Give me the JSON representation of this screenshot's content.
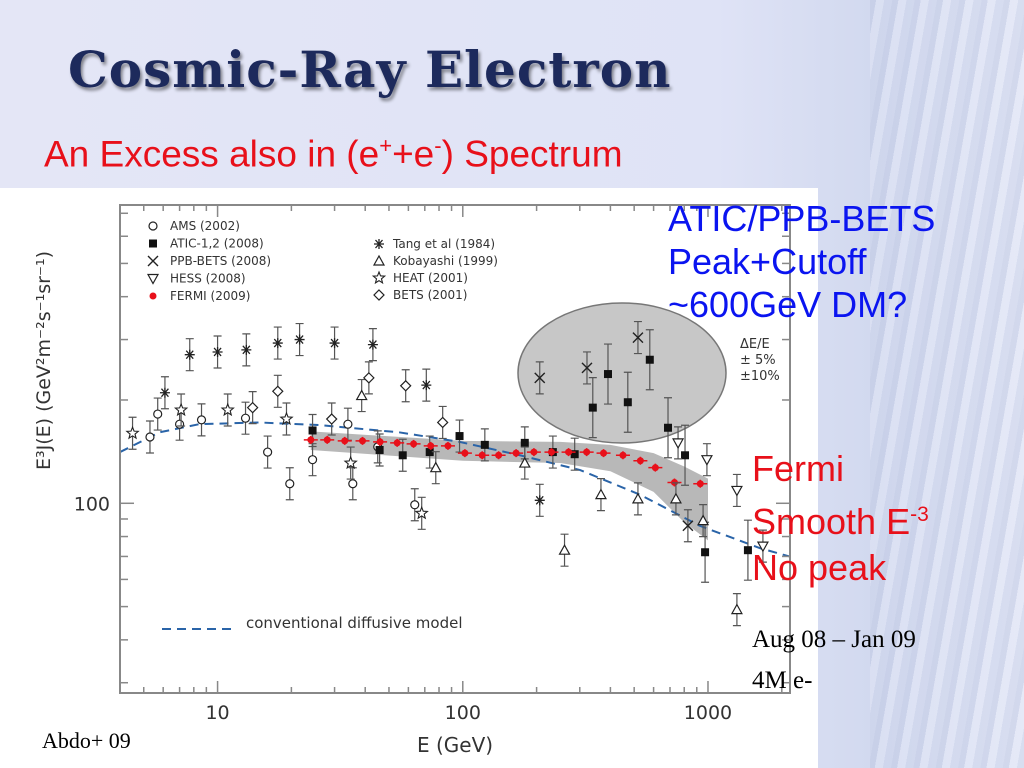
{
  "slide": {
    "title": "Cosmic-Ray Electron",
    "subtitle_main": "An Excess also in (e",
    "subtitle_sup1": "+",
    "subtitle_mid": "+e",
    "subtitle_sup2": "-",
    "subtitle_end": ") Spectrum",
    "annotation_blue": [
      "ATIC/PPB-BETS",
      "Peak+Cutoff",
      "~600GeV DM?"
    ],
    "annotation_red_1": "Fermi",
    "annotation_red_2": "Smooth E",
    "annotation_red_2_sup": "-3",
    "annotation_red_3": "No peak",
    "period": "Aug 08 – Jan 09",
    "events": "4M e-",
    "citation": "Abdo+ 09",
    "colors": {
      "title": "#1d2a5c",
      "subtitle": "#e8101a",
      "blue_note": "#0a14f0",
      "fermi": "#e8101a",
      "model": "#2a64a8"
    }
  },
  "chart_data": {
    "type": "scatter",
    "xlabel": "E (GeV)",
    "ylabel": "E³J(E) (GeV²m⁻²s⁻¹sr⁻¹)",
    "xscale": "log",
    "yscale": "log",
    "xlim": [
      4,
      2160
    ],
    "ylim": [
      28,
      740
    ],
    "xticks": [
      {
        "value": 10,
        "label": "10"
      },
      {
        "value": 100,
        "label": "100"
      },
      {
        "value": 1000,
        "label": "1000"
      }
    ],
    "yticks": [
      {
        "value": 100,
        "label": "100"
      }
    ],
    "energy_resolution_note": [
      "ΔE/E",
      "± 5%",
      "±10%"
    ],
    "model": {
      "name": "conventional diffusive model",
      "x": [
        4.0,
        5.8,
        8.4,
        14.8,
        26,
        55,
        97,
        171,
        301,
        527,
        925,
        1630,
        2150
      ],
      "y": [
        141,
        161,
        170,
        172,
        169,
        161,
        151,
        138,
        125,
        106,
        86,
        74,
        70
      ]
    },
    "fermi_band": {
      "x": [
        24,
        100,
        250,
        400,
        600,
        800,
        1000
      ],
      "lower": [
        143,
        133,
        131,
        124,
        108,
        88,
        78
      ],
      "upper": [
        162,
        152,
        151,
        148,
        140,
        128,
        118
      ]
    },
    "legend_left": [
      "AMS (2002)",
      "ATIC-1,2 (2008)",
      "PPB-BETS (2008)",
      "HESS (2008)",
      "FERMI (2009)"
    ],
    "legend_right": [
      "Tang et al (1984)",
      "Kobayashi (1999)",
      "HEAT (2001)",
      "BETS (2001)"
    ],
    "series": [
      {
        "name": "AMS (2002)",
        "marker": "circle",
        "x": [
          5.3,
          5.7,
          7.0,
          8.6,
          13.0,
          16,
          19.7,
          24.4,
          34,
          35.6,
          45,
          63.7
        ],
        "y": [
          156,
          182,
          170,
          175,
          177,
          141,
          114,
          134,
          170,
          114,
          146,
          99
        ]
      },
      {
        "name": "ATIC-1,2 (2008)",
        "marker": "square",
        "x": [
          24.4,
          45.8,
          56.9,
          73.3,
          97,
          123,
          179,
          233,
          286,
          339,
          391,
          471,
          579,
          687,
          806,
          973,
          1455
        ],
        "y": [
          163,
          143,
          138,
          141,
          157,
          148,
          150,
          141,
          139,
          190,
          238,
          197,
          262,
          166,
          138,
          72,
          73
        ]
      },
      {
        "name": "PPB-BETS (2008)",
        "marker": "x",
        "x": [
          206,
          321,
          518,
          828
        ],
        "y": [
          232,
          248,
          304,
          86
        ]
      },
      {
        "name": "HESS (2008)",
        "marker": "triangle-down",
        "x": [
          755,
          990,
          1312,
          1675
        ],
        "y": [
          150,
          134,
          109,
          75
        ]
      },
      {
        "name": "FERMI (2009)",
        "marker": "dot",
        "x": [
          24,
          28,
          33,
          39,
          46,
          54,
          63,
          74,
          87,
          102,
          120,
          140,
          165,
          195,
          230,
          270,
          320,
          375,
          450,
          530,
          610,
          730,
          930
        ],
        "y": [
          153,
          153,
          152,
          152,
          151,
          150,
          149,
          147,
          147,
          140,
          138,
          138,
          140,
          141,
          141,
          141,
          141,
          140,
          138,
          133,
          127,
          115,
          114
        ]
      },
      {
        "name": "Tang et al (1984)",
        "marker": "asterisk",
        "x": [
          6.1,
          7.7,
          10,
          13.1,
          17.6,
          21.6,
          30,
          43,
          71,
          206
        ],
        "y": [
          210,
          271,
          276,
          280,
          293,
          300,
          293,
          290,
          221,
          102
        ]
      },
      {
        "name": "Kobayashi (1999)",
        "marker": "triangle-up",
        "x": [
          38.7,
          77.6,
          179,
          260,
          366,
          518,
          740,
          955,
          1312
        ],
        "y": [
          206,
          127,
          131,
          73,
          106,
          103,
          103,
          89,
          49
        ]
      },
      {
        "name": "HEAT (2001)",
        "marker": "star",
        "x": [
          4.5,
          7.1,
          11.0,
          19.1,
          34.9,
          68
        ],
        "y": [
          160,
          187,
          187,
          176,
          131,
          93.5
        ]
      },
      {
        "name": "BETS (2001)",
        "marker": "diamond",
        "x": [
          13.9,
          17.6,
          29.2,
          41.4,
          58.5,
          82.8
        ],
        "y": [
          190,
          212,
          176,
          232,
          220,
          172
        ]
      }
    ]
  }
}
